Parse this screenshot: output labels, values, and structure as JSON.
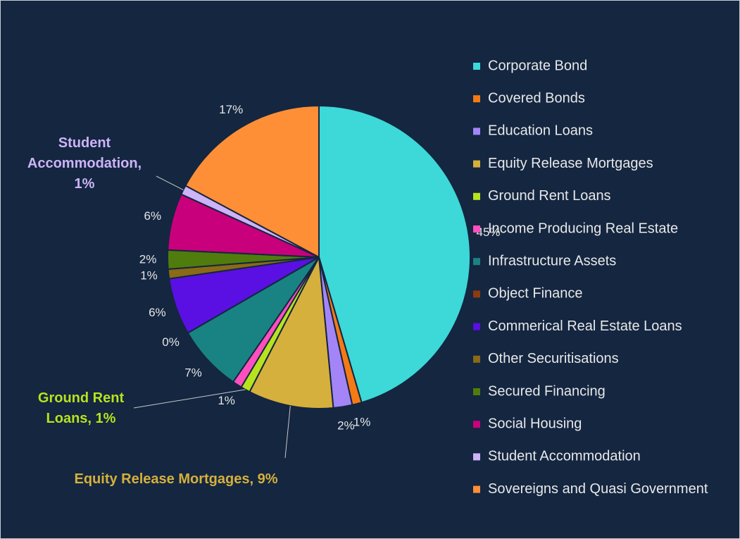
{
  "chart_data": {
    "type": "pie",
    "categories": [
      "Corporate Bond",
      "Covered Bonds",
      "Education Loans",
      "Equity Release Mortgages",
      "Ground Rent Loans",
      "Income Producing Real Estate",
      "Infrastructure Assets",
      "Object Finance",
      "Commerical Real Estate Loans",
      "Other Securitisations",
      "Secured Financing",
      "Social Housing",
      "Student Accommodation",
      "Sovereigns and Quasi Government"
    ],
    "values": [
      45,
      1,
      2,
      9,
      1,
      1,
      7,
      0,
      6,
      1,
      2,
      6,
      1,
      17
    ],
    "value_labels": [
      "45%",
      "1%",
      "2%",
      "Equity Release Mortgages, 9%",
      "Ground Rent Loans, 1%",
      "1%",
      "7%",
      "0%",
      "6%",
      "1%",
      "2%",
      "6%",
      "Student Accommodation, 1%",
      "17%"
    ],
    "colors": [
      "#3dd8d8",
      "#f57a14",
      "#a485f7",
      "#d6b03c",
      "#b7e31e",
      "#ff4fbf",
      "#198383",
      "#8e3a10",
      "#5a10e2",
      "#8a6a16",
      "#507c0e",
      "#c9007c",
      "#cdb3f7",
      "#ff8f36"
    ],
    "legend": "right"
  }
}
